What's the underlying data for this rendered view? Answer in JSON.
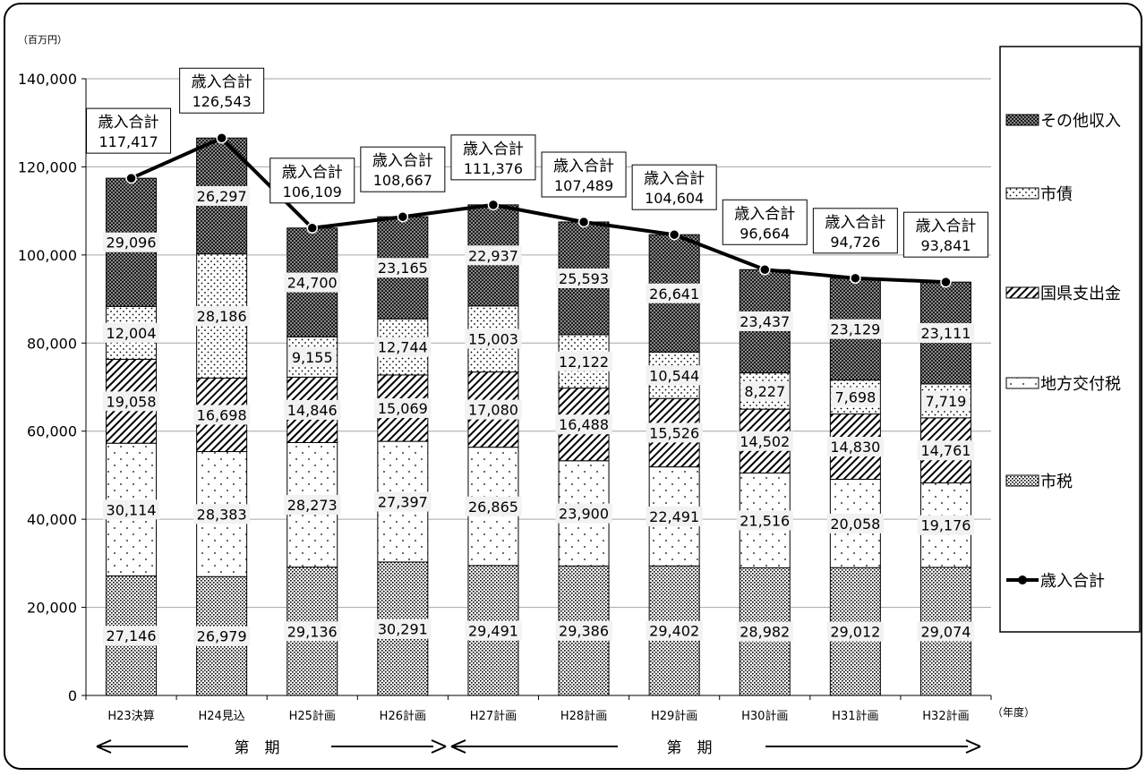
{
  "chart_data": {
    "type": "bar",
    "stacked": true,
    "unit_label": "（百万円）",
    "x_unit_label": "（年度）",
    "categories": [
      "H23決算",
      "H24見込",
      "H25計画",
      "H26計画",
      "H27計画",
      "H28計画",
      "H29計画",
      "H30計画",
      "H31計画",
      "H32計画"
    ],
    "ylim": [
      0,
      140000
    ],
    "yticks": [
      0,
      20000,
      40000,
      60000,
      80000,
      100000,
      120000,
      140000
    ],
    "ytick_labels": [
      "0",
      "20,000",
      "40,000",
      "60,000",
      "80,000",
      "100,000",
      "120,000",
      "140,000"
    ],
    "grid": true,
    "legend_position": "right",
    "series": [
      {
        "name": "市税",
        "pattern": "dense-dots",
        "values": [
          27146,
          26979,
          29136,
          30291,
          29491,
          29386,
          29402,
          28982,
          29012,
          29074
        ]
      },
      {
        "name": "地方交付税",
        "pattern": "sparse-dots",
        "values": [
          30114,
          28383,
          28273,
          27397,
          26865,
          23900,
          22491,
          21516,
          20058,
          19176
        ]
      },
      {
        "name": "国県支出金",
        "pattern": "diagonal-hatch",
        "values": [
          19058,
          16698,
          14846,
          15069,
          17080,
          16488,
          15526,
          14502,
          14830,
          14761
        ]
      },
      {
        "name": "市債",
        "pattern": "medium-dots",
        "values": [
          12004,
          28186,
          9155,
          12744,
          15003,
          12122,
          10544,
          8227,
          7698,
          7719
        ]
      },
      {
        "name": "その他収入",
        "pattern": "crosshatch",
        "values": [
          29096,
          26297,
          24700,
          23165,
          22937,
          25593,
          26641,
          23437,
          23129,
          23111
        ]
      }
    ],
    "value_labels": [
      [
        "27,146",
        "30,114",
        "19,058",
        "12,004",
        "29,096"
      ],
      [
        "26,979",
        "28,383",
        "16,698",
        "28,186",
        "26,297"
      ],
      [
        "29,136",
        "28,273",
        "14,846",
        "9,155",
        "24,700"
      ],
      [
        "30,291",
        "27,397",
        "15,069",
        "12,744",
        "23,165"
      ],
      [
        "29,491",
        "26,865",
        "17,080",
        "15,003",
        "22,937"
      ],
      [
        "29,386",
        "23,900",
        "16,488",
        "12,122",
        "25,593"
      ],
      [
        "29,402",
        "22,491",
        "15,526",
        "10,544",
        "26,641"
      ],
      [
        "28,982",
        "21,516",
        "14,502",
        "8,227",
        "23,437"
      ],
      [
        "29,012",
        "20,058",
        "14,830",
        "7,698",
        "23,129"
      ],
      [
        "29,074",
        "19,176",
        "14,761",
        "7,719",
        "23,111"
      ]
    ],
    "total_series": {
      "name": "歳入合計",
      "type": "line",
      "values": [
        117417,
        126543,
        106109,
        108667,
        111376,
        107489,
        104604,
        96664,
        94726,
        93841
      ],
      "box_title": "歳入合計",
      "box_values": [
        "117,417",
        "126,543",
        "106,109",
        "108,667",
        "111,376",
        "107,489",
        "104,604",
        "96,664",
        "94,726",
        "93,841"
      ]
    },
    "legend": [
      {
        "name": "その他収入",
        "pattern": "crosshatch"
      },
      {
        "name": "市債",
        "pattern": "medium-dots"
      },
      {
        "name": "国県支出金",
        "pattern": "diagonal-hatch"
      },
      {
        "name": "地方交付税",
        "pattern": "sparse-dots"
      },
      {
        "name": "市税",
        "pattern": "dense-dots"
      },
      {
        "name": "歳入合計",
        "pattern": "line-marker"
      }
    ],
    "periods": [
      {
        "label": "第　期",
        "arrow": "both"
      },
      {
        "label": "第　期",
        "arrow": "both"
      }
    ]
  }
}
